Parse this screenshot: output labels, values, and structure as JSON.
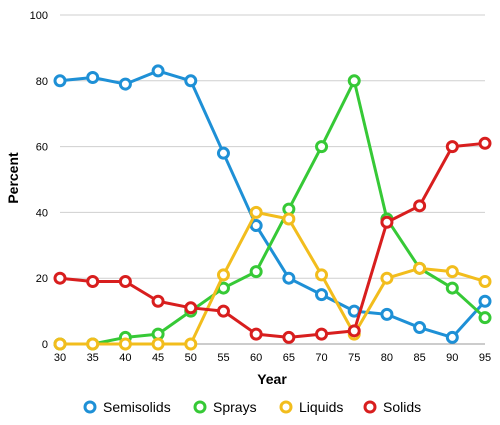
{
  "chart_data": {
    "type": "line",
    "title": "",
    "xlabel": "Year",
    "ylabel": "Percent",
    "x": [
      30,
      35,
      40,
      45,
      50,
      55,
      60,
      65,
      70,
      75,
      80,
      85,
      90,
      95
    ],
    "ylim": [
      0,
      100
    ],
    "yticks": [
      0,
      20,
      40,
      60,
      80,
      100
    ],
    "grid": true,
    "legend_position": "bottom",
    "series": [
      {
        "name": "Semisolids",
        "color": "#1e90d6",
        "values": [
          80,
          81,
          79,
          83,
          80,
          58,
          36,
          20,
          15,
          10,
          9,
          5,
          2,
          13
        ]
      },
      {
        "name": "Sprays",
        "color": "#36c936",
        "values": [
          0,
          0,
          2,
          3,
          10,
          17,
          22,
          41,
          60,
          80,
          38,
          23,
          17,
          8
        ]
      },
      {
        "name": "Liquids",
        "color": "#f2bd1d",
        "values": [
          0,
          0,
          0,
          0,
          0,
          21,
          40,
          38,
          21,
          3,
          20,
          23,
          22,
          19
        ]
      },
      {
        "name": "Solids",
        "color": "#d81e1e",
        "values": [
          20,
          19,
          19,
          13,
          11,
          10,
          3,
          2,
          3,
          4,
          37,
          42,
          60,
          61
        ]
      }
    ]
  }
}
